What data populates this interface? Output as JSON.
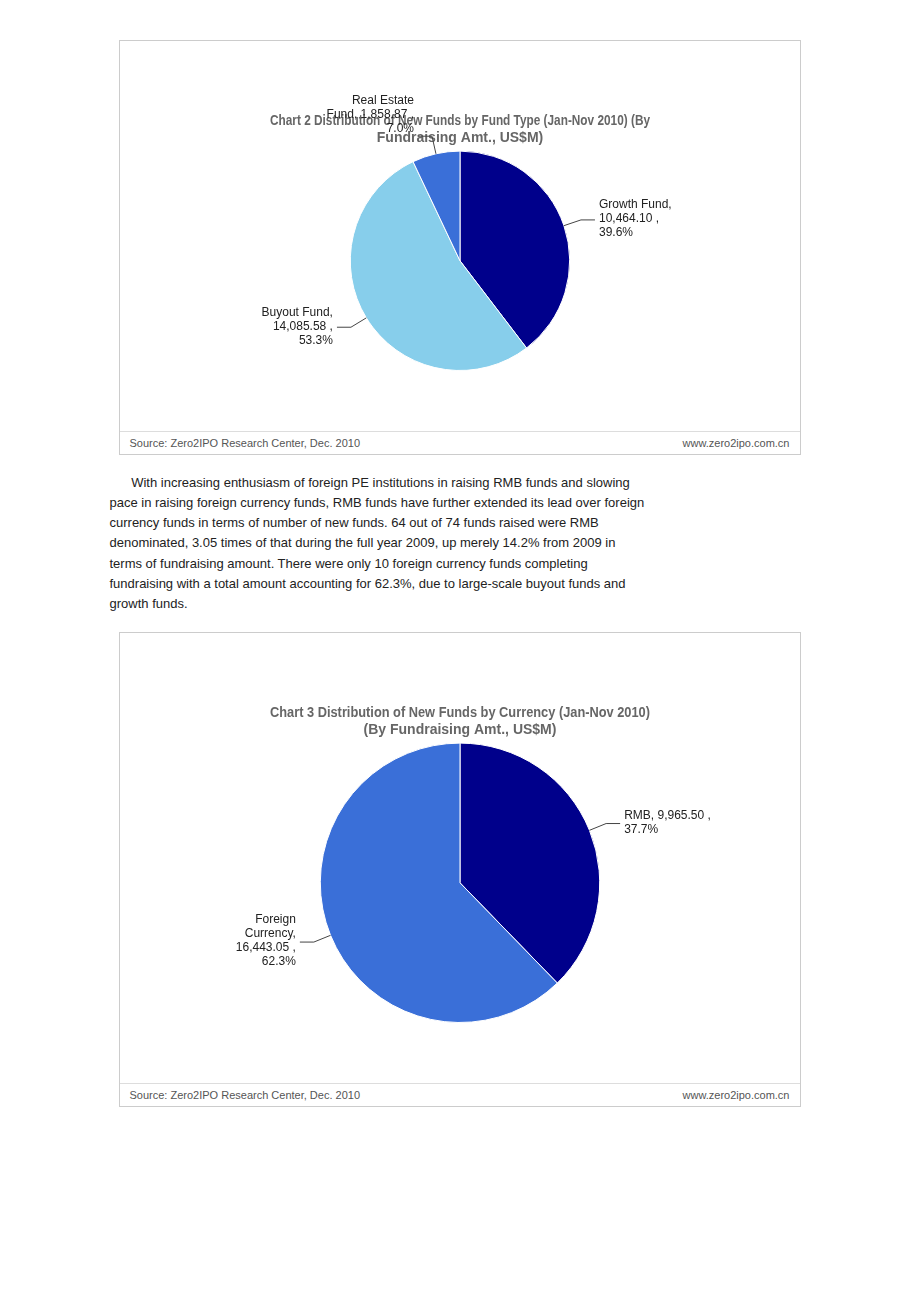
{
  "chart_data": [
    {
      "type": "pie",
      "title": "Chart 2 Distribution of New Funds by Fund Type (Jan-Nov 2010) (By\nFundraising Amt., US$M)",
      "values": [
        10464.1,
        14085.58,
        1858.87
      ],
      "colors": [
        "#00008B",
        "#87CEEB",
        "#3A6FD8"
      ],
      "data_labels": true,
      "value_labels": [
        "Growth Fund,\n10,464.10 ,\n39.6%",
        "Buyout Fund,\n14,085.58 ,\n53.3%",
        "Real Estate\nFund, 1,858.87 ,\n7.0%"
      ],
      "footer": [
        "Source: Zero2IPO Research Center, Dec. 2010",
        "www.zero2ipo.com.cn"
      ]
    },
    {
      "type": "pie",
      "title": "Chart 3 Distribution of New Funds by Currency (Jan-Nov 2010)\n(By Fundraising Amt., US$M)",
      "values": [
        9965.5,
        16443.05
      ],
      "colors": [
        "#00008B",
        "#3A6FD8"
      ],
      "data_labels": true,
      "value_labels": [
        "RMB, 9,965.50 ,\n37.7%",
        "Foreign\nCurrency,\n16,443.05 ,\n62.3%"
      ],
      "footer": [
        "Source: Zero2IPO Research Center, Dec. 2010",
        "www.zero2ipo.com.cn"
      ]
    }
  ],
  "paragraph": [
    "      With increasing enthusiasm of foreign PE institutions in raising RMB funds and slowing",
    "pace in raising foreign currency funds, RMB funds have further extended its lead over foreign",
    "currency funds in terms of number of new funds. 64 out of 74 funds raised were RMB",
    "denominated, 3.05 times of that during the full year 2009, up merely 14.2% from 2009 in",
    "terms of fundraising amount. There were only 10 foreign currency funds completing",
    "fundraising with a total amount accounting for 62.3%, due to large-scale buyout funds and",
    "growth funds."
  ]
}
